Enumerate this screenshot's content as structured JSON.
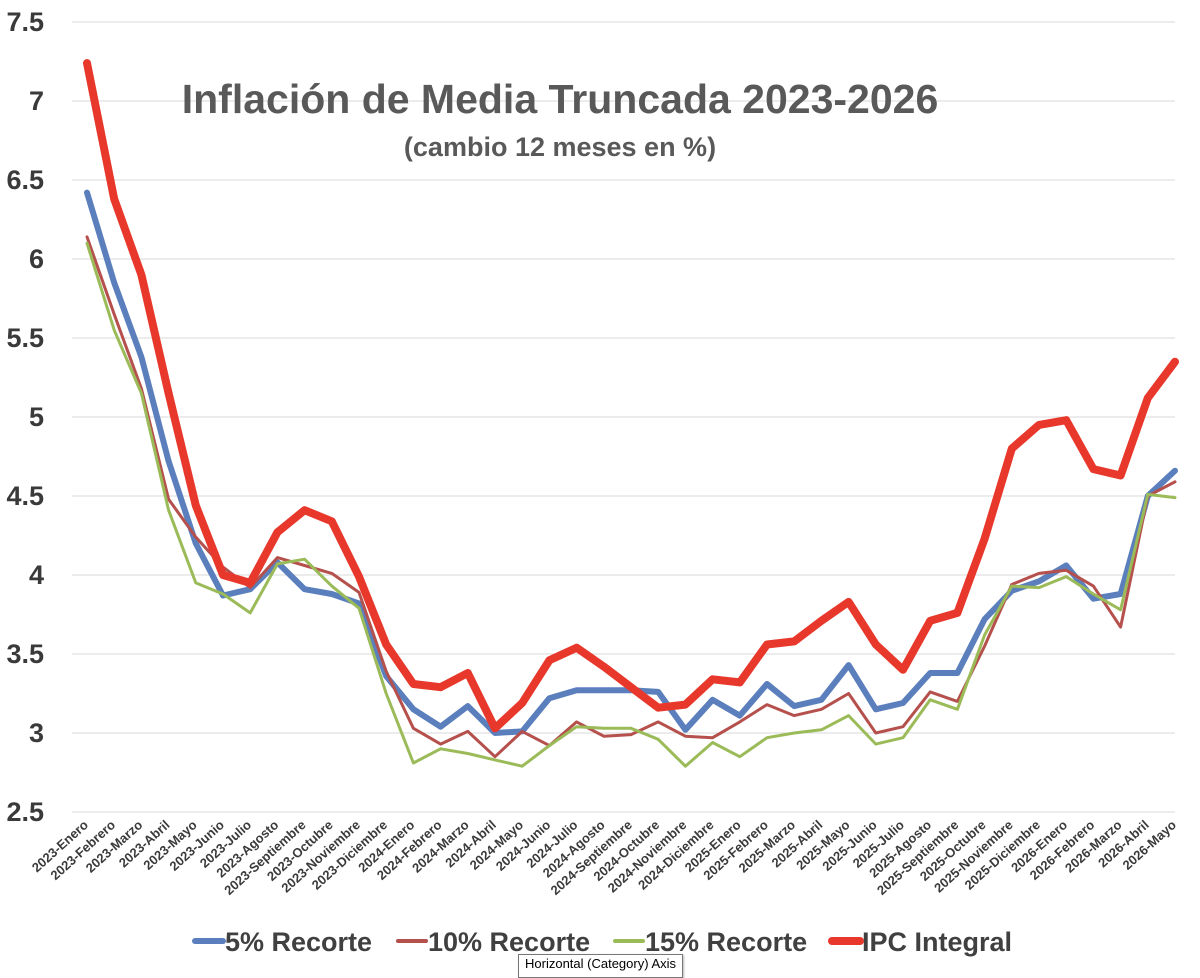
{
  "tooltip": "Horizontal (Category) Axis",
  "chart_data": {
    "type": "line",
    "title": "Inflación de Media Truncada 2023-2026",
    "subtitle": "(cambio 12 meses en %)",
    "xlabel": "",
    "ylabel": "",
    "ylim": [
      2.5,
      7.5
    ],
    "yticks": [
      "2.5",
      "3",
      "3.5",
      "4",
      "4.5",
      "5",
      "5.5",
      "6",
      "6.5",
      "7",
      "7.5"
    ],
    "grid": true,
    "legend_position": "bottom",
    "categories": [
      "2023-Enero",
      "2023-Febrero",
      "2023-Marzo",
      "2023-Abril",
      "2023-Mayo",
      "2023-Junio",
      "2023-Julio",
      "2023-Agosto",
      "2023-Septiembre",
      "2023-Octubre",
      "2023-Noviembre",
      "2023-Diciembre",
      "2024-Enero",
      "2024-Febrero",
      "2024-Marzo",
      "2024-Abril",
      "2024-Mayo",
      "2024-Junio",
      "2024-Julio",
      "2024-Agosto",
      "2024-Septiembre",
      "2024-Octubre",
      "2024-Noviembre",
      "2024-Diciembre",
      "2025-Enero",
      "2025-Febrero",
      "2025-Marzo",
      "2025-Abril",
      "2025-Mayo",
      "2025-Junio",
      "2025-Julio",
      "2025-Agosto",
      "2025-Septiembre",
      "2025-Octubre",
      "2025-Noviembre",
      "2025-Diciembre",
      "2026-Enero",
      "2026-Febrero",
      "2026-Marzo",
      "2026-Abril",
      "2026-Mayo"
    ],
    "series": [
      {
        "name": "5% Recorte",
        "color": "#5b7fbd",
        "width": 6,
        "values": [
          6.42,
          5.85,
          5.38,
          4.72,
          4.2,
          3.87,
          3.91,
          4.08,
          3.91,
          3.88,
          3.82,
          3.36,
          3.15,
          3.04,
          3.17,
          3.0,
          3.01,
          3.22,
          3.27,
          3.27,
          3.27,
          3.26,
          3.02,
          3.21,
          3.11,
          3.31,
          3.17,
          3.21,
          3.43,
          3.15,
          3.19,
          3.38,
          3.38,
          3.72,
          3.9,
          3.96,
          4.06,
          3.85,
          3.88,
          4.5,
          4.66
        ]
      },
      {
        "name": "10% Recorte",
        "color": "#b5504c",
        "width": 3,
        "values": [
          6.14,
          5.65,
          5.18,
          4.48,
          4.24,
          4.05,
          3.92,
          4.11,
          4.06,
          4.01,
          3.89,
          3.39,
          3.03,
          2.93,
          3.01,
          2.85,
          3.01,
          2.92,
          3.07,
          2.98,
          2.99,
          3.07,
          2.98,
          2.97,
          3.07,
          3.18,
          3.11,
          3.15,
          3.25,
          3.0,
          3.04,
          3.26,
          3.2,
          3.55,
          3.94,
          4.01,
          4.03,
          3.93,
          3.67,
          4.5,
          4.59
        ]
      },
      {
        "name": "15% Recorte",
        "color": "#9bbb59",
        "width": 3,
        "values": [
          6.1,
          5.55,
          5.15,
          4.41,
          3.95,
          3.88,
          3.76,
          4.07,
          4.1,
          3.93,
          3.79,
          3.25,
          2.81,
          2.9,
          2.87,
          2.83,
          2.79,
          2.92,
          3.04,
          3.03,
          3.03,
          2.96,
          2.79,
          2.94,
          2.85,
          2.97,
          3.0,
          3.02,
          3.11,
          2.93,
          2.97,
          3.21,
          3.15,
          3.62,
          3.93,
          3.92,
          3.99,
          3.88,
          3.78,
          4.51,
          4.49
        ]
      },
      {
        "name": "IPC Integral",
        "color": "#e8382c",
        "width": 8,
        "values": [
          7.24,
          6.38,
          5.9,
          5.15,
          4.44,
          4.0,
          3.95,
          4.27,
          4.41,
          4.34,
          3.99,
          3.56,
          3.31,
          3.29,
          3.38,
          3.03,
          3.19,
          3.46,
          3.54,
          3.42,
          3.29,
          3.16,
          3.18,
          3.34,
          3.32,
          3.56,
          3.58,
          3.71,
          3.83,
          3.56,
          3.4,
          3.71,
          3.76,
          4.23,
          4.8,
          4.95,
          4.98,
          4.67,
          4.63,
          5.12,
          5.35
        ]
      }
    ]
  }
}
